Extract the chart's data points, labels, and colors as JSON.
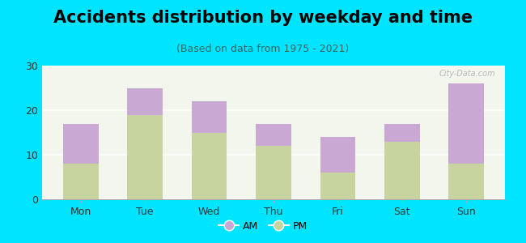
{
  "title": "Accidents distribution by weekday and time",
  "subtitle": "(Based on data from 1975 - 2021)",
  "categories": [
    "Mon",
    "Tue",
    "Wed",
    "Thu",
    "Fri",
    "Sat",
    "Sun"
  ],
  "pm_values": [
    8,
    19,
    15,
    12,
    6,
    13,
    8
  ],
  "am_values": [
    9,
    6,
    7,
    5,
    8,
    4,
    18
  ],
  "am_color": "#c9a8d4",
  "pm_color": "#c8d4a0",
  "background_color": "#00e5ff",
  "plot_bg_color": "#f2f6ec",
  "ylim": [
    0,
    30
  ],
  "yticks": [
    0,
    10,
    20,
    30
  ],
  "bar_width": 0.55,
  "legend_am": "AM",
  "legend_pm": "PM",
  "title_fontsize": 15,
  "subtitle_fontsize": 9,
  "tick_fontsize": 9,
  "legend_fontsize": 9
}
